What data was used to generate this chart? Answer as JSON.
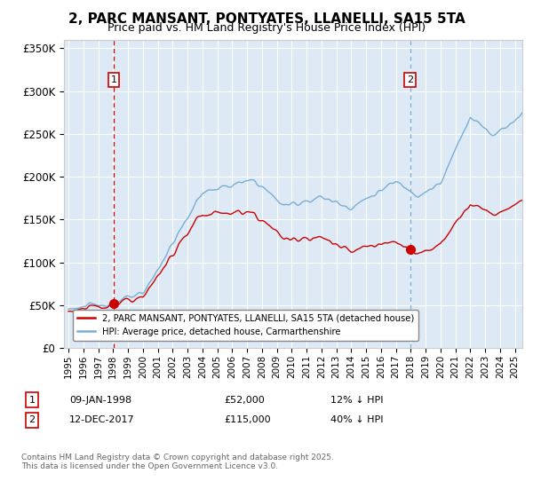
{
  "title_line1": "2, PARC MANSANT, PONTYATES, LLANELLI, SA15 5TA",
  "title_line2": "Price paid vs. HM Land Registry's House Price Index (HPI)",
  "legend_label_red": "2, PARC MANSANT, PONTYATES, LLANELLI, SA15 5TA (detached house)",
  "legend_label_blue": "HPI: Average price, detached house, Carmarthenshire",
  "sale1_date": "09-JAN-1998",
  "sale1_price": "£52,000",
  "sale1_note": "12% ↓ HPI",
  "sale2_date": "12-DEC-2017",
  "sale2_price": "£115,000",
  "sale2_note": "40% ↓ HPI",
  "sale1_year": 1998.04,
  "sale1_value": 52000,
  "sale2_year": 2017.96,
  "sale2_value": 115000,
  "ylim_min": 0,
  "ylim_max": 360000,
  "xlim_min": 1994.7,
  "xlim_max": 2025.5,
  "footer": "Contains HM Land Registry data © Crown copyright and database right 2025.\nThis data is licensed under the Open Government Licence v3.0.",
  "background_color": "#ddeaf5",
  "red_color": "#cc0000",
  "blue_color": "#7aadd4",
  "vline1_color": "#cc0000",
  "vline2_color": "#7aadd4",
  "grid_color": "#ffffff",
  "title_fontsize": 11,
  "subtitle_fontsize": 9
}
